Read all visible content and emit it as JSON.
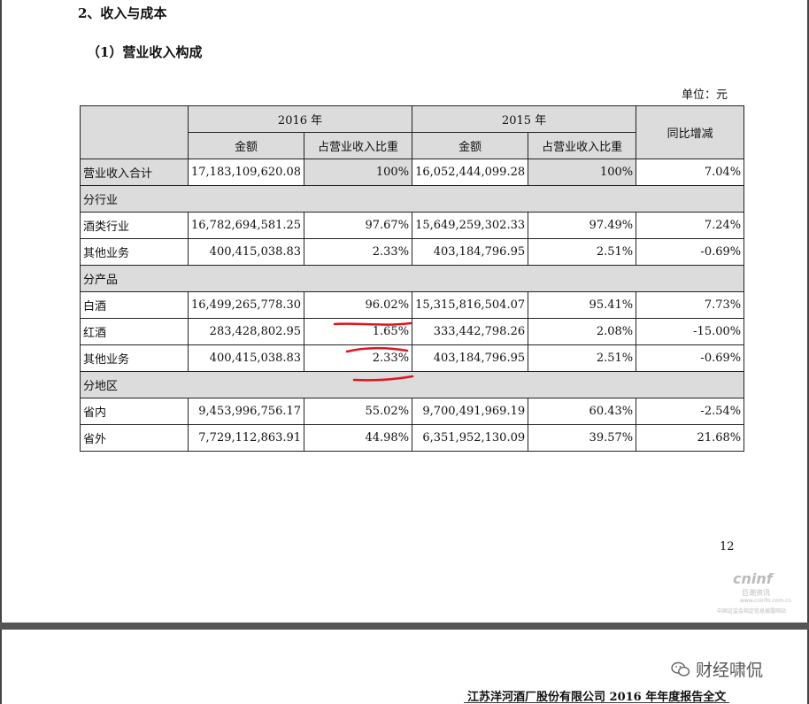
{
  "section_title": "2、收入与成本",
  "subsection_title": "（1）营业收入构成",
  "unit_label": "单位：元",
  "table": {
    "header": {
      "year_2016": "2016 年",
      "year_2015": "2015 年",
      "amount": "金额",
      "ratio": "占营业收入比重",
      "yoy": "同比增减"
    },
    "total": {
      "label": "营业收入合计",
      "a2016": "17,183,109,620.08",
      "r2016": "100%",
      "a2015": "16,052,444,099.28",
      "r2015": "100%",
      "yoy": "7.04%"
    },
    "groups": [
      {
        "title": "分行业",
        "rows": [
          {
            "label": "酒类行业",
            "a2016": "16,782,694,581.25",
            "r2016": "97.67%",
            "a2015": "15,649,259,302.33",
            "r2015": "97.49%",
            "yoy": "7.24%"
          },
          {
            "label": "其他业务",
            "a2016": "400,415,038.83",
            "r2016": "2.33%",
            "a2015": "403,184,796.95",
            "r2015": "2.51%",
            "yoy": "-0.69%"
          }
        ]
      },
      {
        "title": "分产品",
        "rows": [
          {
            "label": "白酒",
            "a2016": "16,499,265,778.30",
            "r2016": "96.02%",
            "a2015": "15,315,816,504.07",
            "r2015": "95.41%",
            "yoy": "7.73%"
          },
          {
            "label": "红酒",
            "a2016": "283,428,802.95",
            "r2016": "1.65%",
            "a2015": "333,442,798.26",
            "r2015": "2.08%",
            "yoy": "-15.00%"
          },
          {
            "label": "其他业务",
            "a2016": "400,415,038.83",
            "r2016": "2.33%",
            "a2015": "403,184,796.95",
            "r2015": "2.51%",
            "yoy": "-0.69%"
          }
        ]
      },
      {
        "title": "分地区",
        "rows": [
          {
            "label": "省内",
            "a2016": "9,453,996,756.17",
            "r2016": "55.02%",
            "a2015": "9,700,491,969.19",
            "r2015": "60.43%",
            "yoy": "-2.54%"
          },
          {
            "label": "省外",
            "a2016": "7,729,112,863.91",
            "r2016": "44.98%",
            "a2015": "6,351,952,130.09",
            "r2015": "39.57%",
            "yoy": "21.68%"
          }
        ]
      }
    ]
  },
  "page_number": "12",
  "watermark": {
    "brand": "cninf",
    "brand_cn": "巨潮资讯",
    "url": "www.cninfo.com.cn",
    "tagline": "中国证监会指定信息披露网站"
  },
  "wechat_label": "财经啸侃",
  "footer": "江苏洋河酒厂股份有限公司 2016 年年度报告全文",
  "colors": {
    "header_gray": "#dcdcdc",
    "annotation_red": "#e0141e"
  }
}
